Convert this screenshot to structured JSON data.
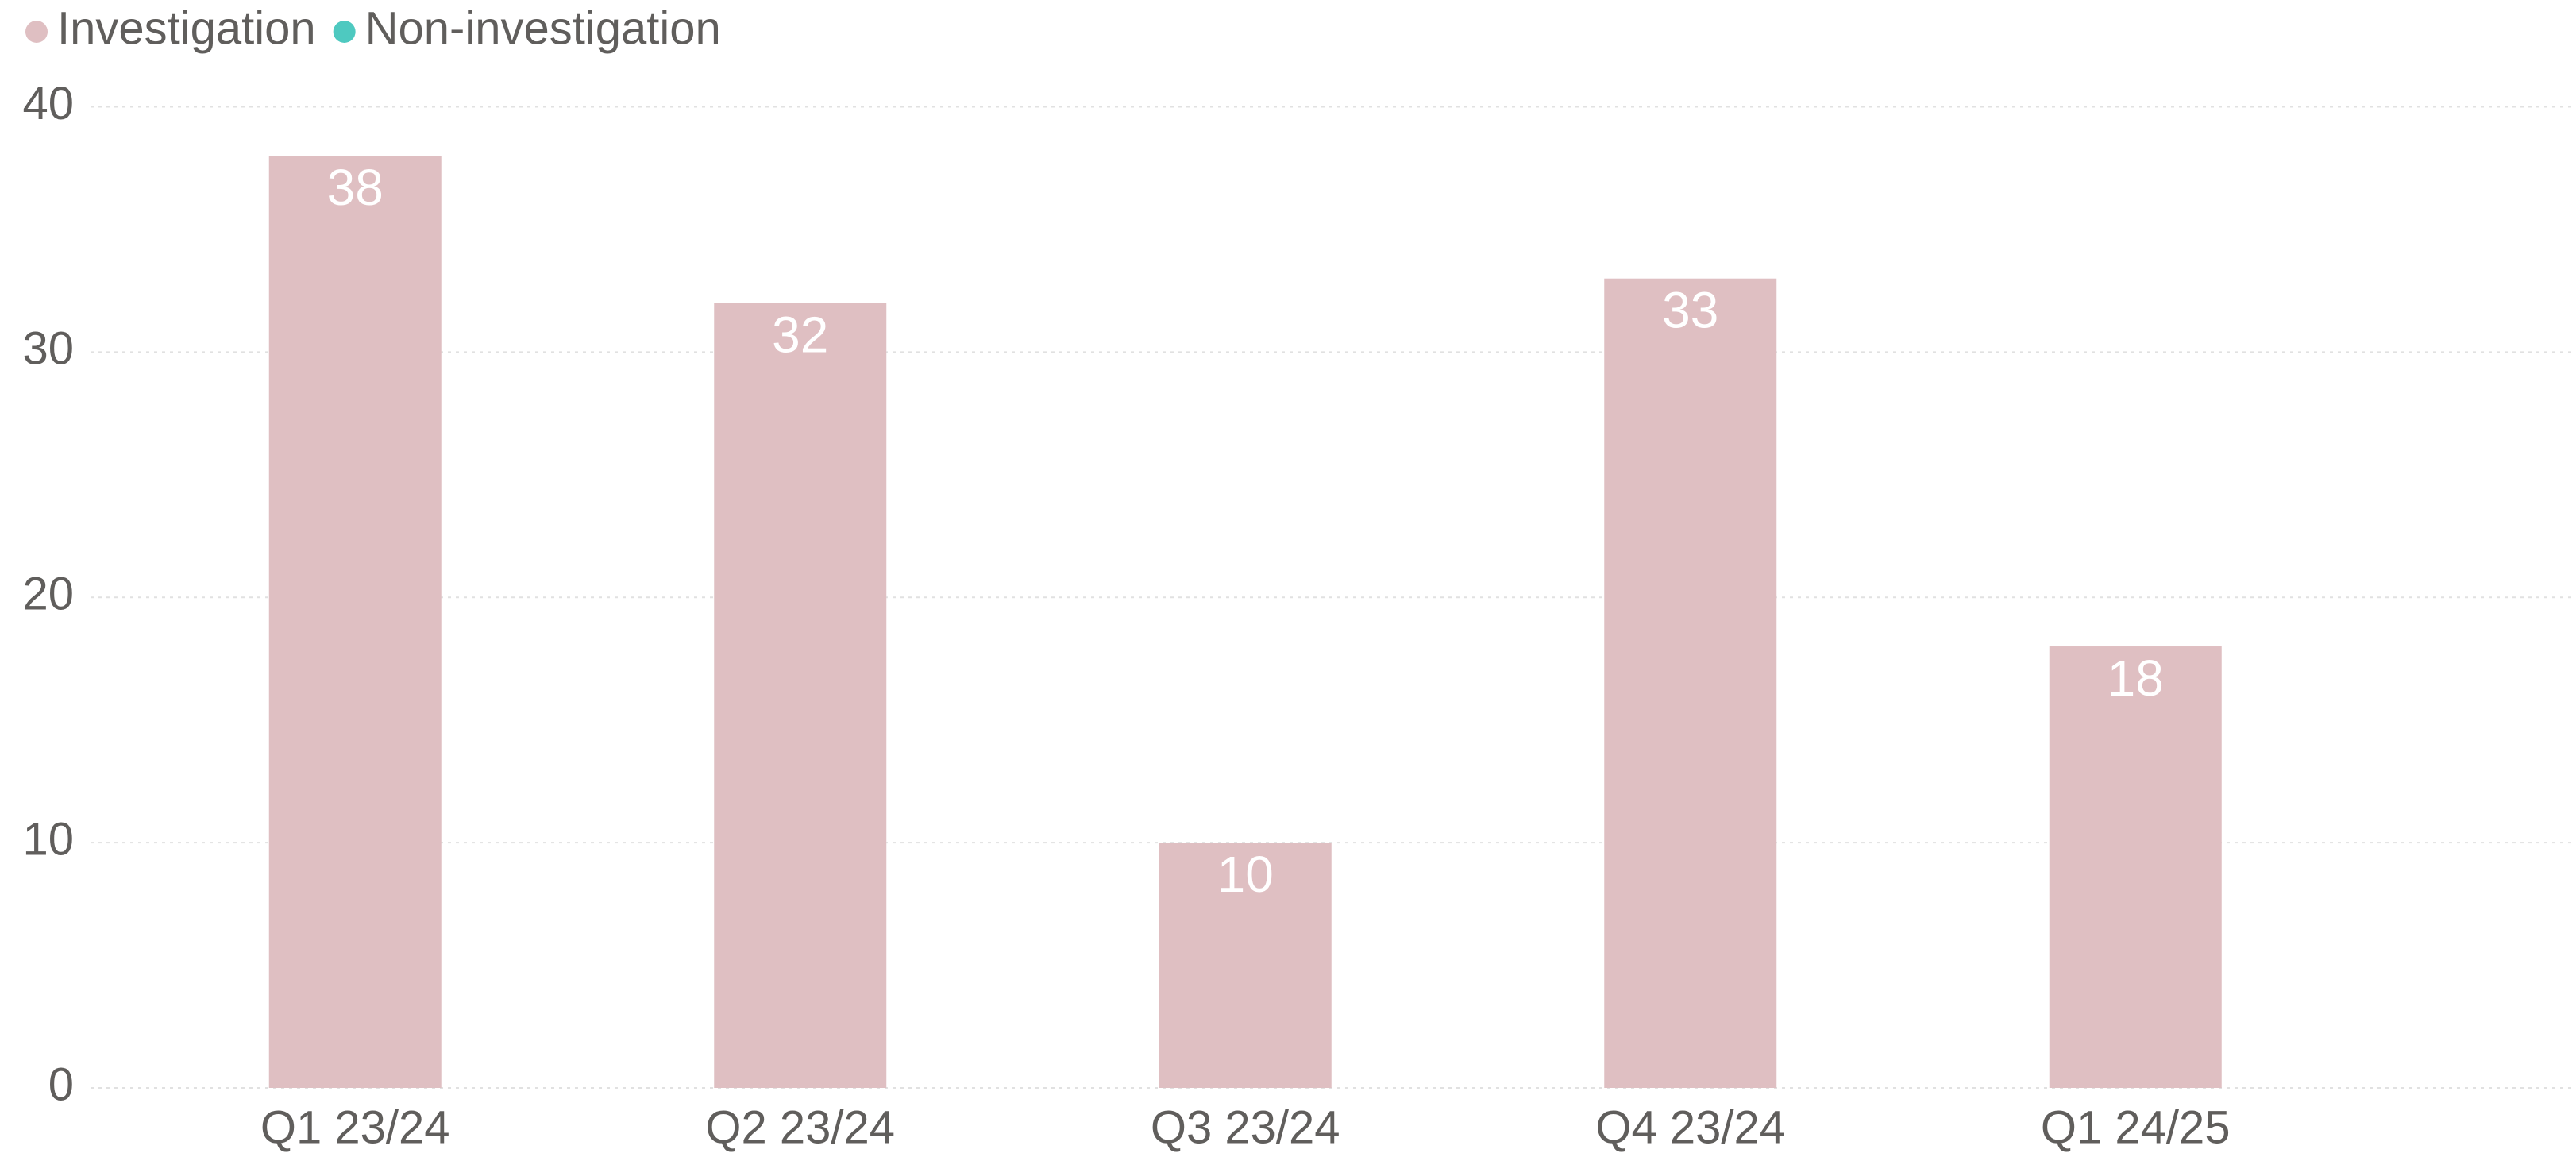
{
  "chart_data": {
    "type": "bar",
    "categories": [
      "Q1 23/24",
      "Q2 23/24",
      "Q3 23/24",
      "Q4 23/24",
      "Q1 24/25"
    ],
    "series": [
      {
        "name": "Investigation",
        "color": "#dfbfc2",
        "values": [
          38,
          32,
          10,
          33,
          18
        ]
      },
      {
        "name": "Non-investigation",
        "color": "#4ec9c0",
        "values": [
          null,
          null,
          null,
          null,
          null
        ]
      }
    ],
    "ylim": [
      0,
      40
    ],
    "yticks": [
      0,
      10,
      20,
      30,
      40
    ],
    "grid": true,
    "legend": "top-left"
  }
}
